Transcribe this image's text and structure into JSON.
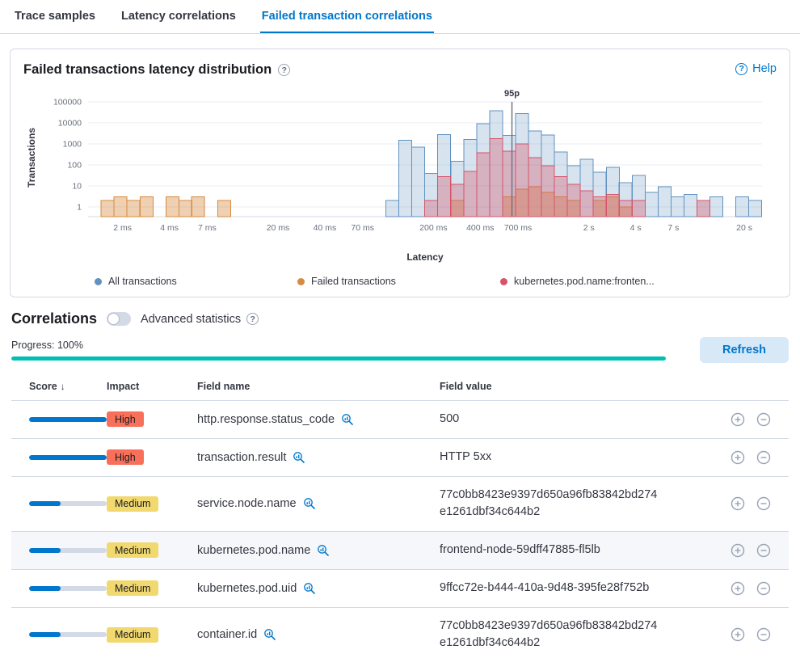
{
  "tabs": [
    {
      "label": "Trace samples"
    },
    {
      "label": "Latency correlations"
    },
    {
      "label": "Failed transaction correlations"
    }
  ],
  "active_tab": "Failed transaction correlations",
  "panel": {
    "title": "Failed transactions latency distribution",
    "help_label": "Help"
  },
  "chart_data": {
    "type": "bar",
    "subtype": "latency histogram, log x and log y scales",
    "title": "Failed transactions latency distribution",
    "xlabel": "Latency",
    "ylabel": "Transactions",
    "x_scale": "log",
    "y_scale": "log",
    "x_domain_ms": [
      1.2,
      26000
    ],
    "y_ticks": [
      1,
      10,
      100,
      1000,
      10000,
      100000
    ],
    "x_ticks": [
      {
        "ms": 2,
        "label": "2 ms"
      },
      {
        "ms": 4,
        "label": "4 ms"
      },
      {
        "ms": 7,
        "label": "7 ms"
      },
      {
        "ms": 20,
        "label": "20 ms"
      },
      {
        "ms": 40,
        "label": "40 ms"
      },
      {
        "ms": 70,
        "label": "70 ms"
      },
      {
        "ms": 200,
        "label": "200 ms"
      },
      {
        "ms": 400,
        "label": "400 ms"
      },
      {
        "ms": 700,
        "label": "700 ms"
      },
      {
        "ms": 2000,
        "label": "2 s"
      },
      {
        "ms": 4000,
        "label": "4 s"
      },
      {
        "ms": 7000,
        "label": "7 s"
      },
      {
        "ms": 20000,
        "label": "20 s"
      }
    ],
    "annotation": {
      "label": "95p",
      "ms": 640
    },
    "bucket_ratio": 1.2115,
    "legend_position": "bottom",
    "series": [
      {
        "name": "All transactions",
        "color": "#6092c0",
        "fill": "rgba(96,146,192,0.25)",
        "data": [
          [
            99,
            2
          ],
          [
            120,
            1500
          ],
          [
            145,
            700
          ],
          [
            176,
            40
          ],
          [
            213,
            2800
          ],
          [
            259,
            150
          ],
          [
            313,
            1600
          ],
          [
            380,
            9000
          ],
          [
            460,
            38000
          ],
          [
            557,
            2500
          ],
          [
            675,
            28000
          ],
          [
            818,
            4200
          ],
          [
            991,
            2600
          ],
          [
            1200,
            420
          ],
          [
            1450,
            90
          ],
          [
            1760,
            190
          ],
          [
            2130,
            45
          ],
          [
            2590,
            75
          ],
          [
            3130,
            14
          ],
          [
            3800,
            32
          ],
          [
            4600,
            5
          ],
          [
            5570,
            9
          ],
          [
            6750,
            3
          ],
          [
            8180,
            4
          ],
          [
            9910,
            2
          ],
          [
            12000,
            3
          ],
          [
            17600,
            3
          ],
          [
            21300,
            2
          ]
        ]
      },
      {
        "name": "Failed transactions",
        "color": "#d68a3e",
        "fill": "rgba(214,138,62,0.4)",
        "data": [
          [
            1.45,
            2
          ],
          [
            1.76,
            3
          ],
          [
            2.13,
            2
          ],
          [
            2.59,
            3
          ],
          [
            3.8,
            3
          ],
          [
            4.6,
            2
          ],
          [
            5.57,
            3
          ],
          [
            8.18,
            2
          ],
          [
            259,
            2
          ],
          [
            557,
            3
          ],
          [
            675,
            7
          ],
          [
            818,
            9
          ],
          [
            991,
            5
          ],
          [
            1200,
            3
          ],
          [
            1450,
            2
          ],
          [
            2130,
            2
          ],
          [
            2590,
            3
          ],
          [
            3130,
            1
          ]
        ]
      },
      {
        "name": "kubernetes.pod.name:fronten...",
        "color": "#d4546a",
        "fill": "rgba(212,84,106,0.35)",
        "data": [
          [
            176,
            2
          ],
          [
            213,
            28
          ],
          [
            259,
            12
          ],
          [
            313,
            50
          ],
          [
            380,
            380
          ],
          [
            460,
            1800
          ],
          [
            557,
            450
          ],
          [
            675,
            1000
          ],
          [
            818,
            220
          ],
          [
            991,
            90
          ],
          [
            1200,
            28
          ],
          [
            1450,
            12
          ],
          [
            1760,
            6
          ],
          [
            2130,
            3
          ],
          [
            2590,
            4
          ],
          [
            3130,
            2
          ],
          [
            3800,
            2
          ],
          [
            9910,
            2
          ]
        ]
      }
    ]
  },
  "correlations": {
    "title": "Correlations",
    "toggle": {
      "label": "Advanced statistics",
      "enabled": false
    },
    "progress": {
      "label": "Progress: 100%",
      "value": 100
    },
    "refresh_label": "Refresh",
    "table": {
      "headers": [
        "Score",
        "Impact",
        "Field name",
        "Field value"
      ],
      "sort": {
        "column": "Score",
        "direction": "desc"
      },
      "rows": [
        {
          "score_pct": 100,
          "impact": "High",
          "field_name": "http.response.status_code",
          "field_value": "500",
          "highlighted": false
        },
        {
          "score_pct": 100,
          "impact": "High",
          "field_name": "transaction.result",
          "field_value": "HTTP 5xx",
          "highlighted": false
        },
        {
          "score_pct": 41,
          "impact": "Medium",
          "field_name": "service.node.name",
          "field_value": "77c0bb8423e9397d650a96fb83842bd274e1261dbf34c644b2",
          "highlighted": false
        },
        {
          "score_pct": 41,
          "impact": "Medium",
          "field_name": "kubernetes.pod.name",
          "field_value": "frontend-node-59dff47885-fl5lb",
          "highlighted": true
        },
        {
          "score_pct": 41,
          "impact": "Medium",
          "field_name": "kubernetes.pod.uid",
          "field_value": "9ffcc72e-b444-410a-9d48-395fe28f752b",
          "highlighted": false
        },
        {
          "score_pct": 41,
          "impact": "Medium",
          "field_name": "container.id",
          "field_value": "77c0bb8423e9397d650a96fb83842bd274e1261dbf34c644b2",
          "highlighted": false
        }
      ]
    }
  },
  "icons": {
    "question_mark": "?",
    "sort_descending": "↓"
  },
  "colors": {
    "accent": "#0077cc",
    "progress": "#00bfb3",
    "score_bar": "#0077cc",
    "score_track": "#d3dae6",
    "action_icon": "#98a2b3",
    "impact": {
      "High": {
        "bg": "#f8705a",
        "text": "#1a1c21"
      },
      "Medium": {
        "bg": "#f1d86f",
        "text": "#1a1c21"
      }
    }
  }
}
